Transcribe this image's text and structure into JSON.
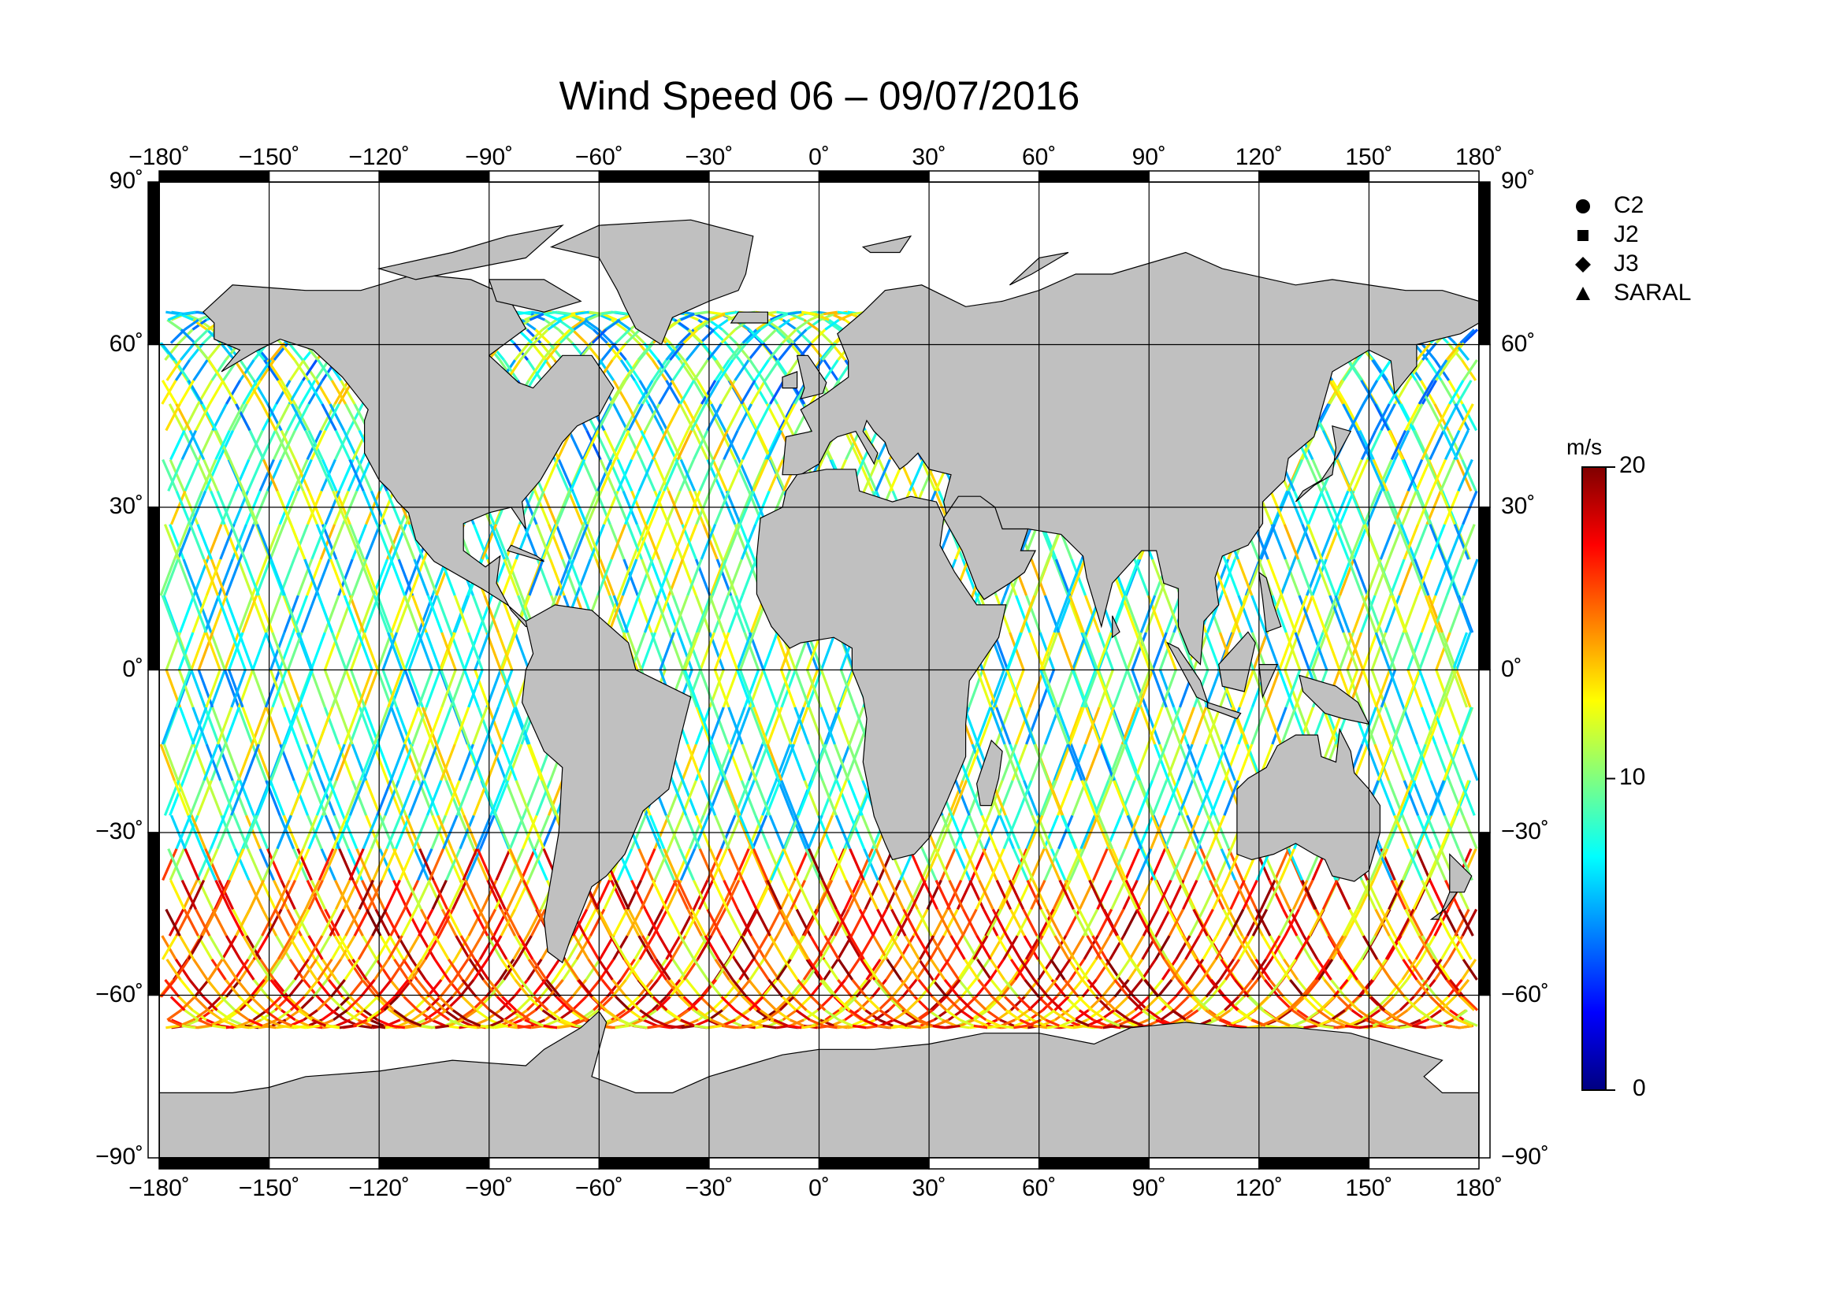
{
  "title": "Wind Speed 06 – 09/07/2016",
  "lon_ticks": [
    "−180˚",
    "−150˚",
    "−120˚",
    "−90˚",
    "−60˚",
    "−30˚",
    "0˚",
    "30˚",
    "60˚",
    "90˚",
    "120˚",
    "150˚",
    "180˚"
  ],
  "lat_ticks": [
    "90˚",
    "60˚",
    "30˚",
    "0˚",
    "−30˚",
    "−60˚",
    "−90˚"
  ],
  "legend": [
    {
      "label": "C2",
      "symbol": "circle"
    },
    {
      "label": "J2",
      "symbol": "square"
    },
    {
      "label": "J3",
      "symbol": "diamond"
    },
    {
      "label": "SARAL",
      "symbol": "triangle"
    }
  ],
  "colorbar": {
    "unit": "m/s",
    "min_label": "0",
    "mid_label": "10",
    "max_label": "20",
    "colors": [
      "#000080",
      "#0000ff",
      "#0080ff",
      "#00ffff",
      "#80ff80",
      "#ffff00",
      "#ff8000",
      "#ff0000",
      "#800000"
    ]
  },
  "map": {
    "ocean": "#ffffff",
    "land": "#c0c0c0",
    "coast": "#000000"
  }
}
